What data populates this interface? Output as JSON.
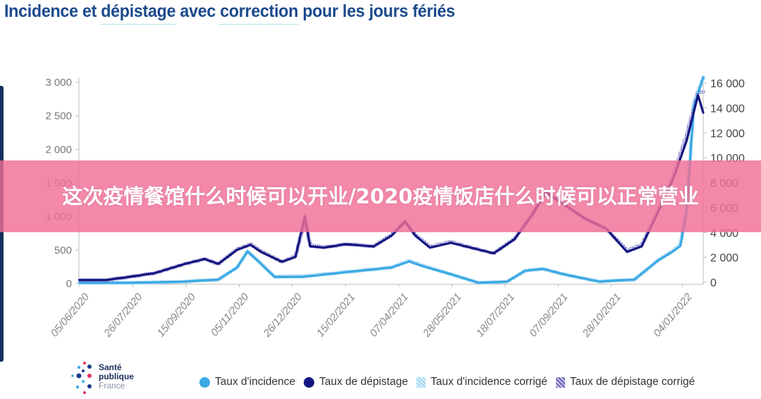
{
  "title": {
    "part1": "Incidence et ",
    "part2": "dépistage",
    "part3": " avec ",
    "part4": "correction",
    "part5": " pour les jours fériés"
  },
  "banner": "这次疫情餐馆什么时候可以开业/2020疫情饭店什么时候可以正常营业",
  "logo": {
    "line1": "Santé",
    "line2": "publique",
    "line3": "France"
  },
  "colors": {
    "incidence": "#3aa9e4",
    "depistage": "#131680",
    "incidence_corrige": "#a6d9f5",
    "depistage_corrige": "#8b86c9",
    "title": "#1b4a8c",
    "banner": "#f06e96"
  },
  "chart_data": {
    "type": "line",
    "title": "Incidence et dépistage avec correction pour les jours fériés",
    "x_type": "date",
    "xlim": [
      "2020-06-05",
      "2022-01-24"
    ],
    "x_ticks": [
      "05/06/2020",
      "26/07/2020",
      "15/09/2020",
      "05/11/2020",
      "26/12/2020",
      "15/02/2021",
      "07/04/2021",
      "28/05/2021",
      "18/07/2021",
      "07/09/2021",
      "28/10/2021",
      "04/01/2022"
    ],
    "y_left": {
      "ylim": [
        0,
        3000
      ],
      "ticks": [
        "0",
        "500",
        "1 000",
        "1 500",
        "2 000",
        "2 500",
        "3 000"
      ],
      "tick_values": [
        0,
        500,
        1000,
        1500,
        2000,
        2500,
        3000
      ]
    },
    "y_right": {
      "ylim": [
        0,
        16000
      ],
      "ticks": [
        "0",
        "2 000",
        "4 000",
        "6 000",
        "8 000",
        "10 000",
        "12 000",
        "14 000",
        "16 000"
      ],
      "tick_values": [
        0,
        2000,
        4000,
        6000,
        8000,
        10000,
        12000,
        14000,
        16000
      ]
    },
    "grid": false,
    "legend": "bottom",
    "series": [
      {
        "name": "Taux d'incidence",
        "axis": "left",
        "style": "line",
        "x": [
          "2020-06-05",
          "2020-07-25",
          "2020-09-14",
          "2020-10-16",
          "2020-11-03",
          "2020-11-13",
          "2020-11-22",
          "2020-12-09",
          "2021-01-05",
          "2021-02-15",
          "2021-03-31",
          "2021-04-17",
          "2021-04-30",
          "2021-05-27",
          "2021-06-23",
          "2021-07-20",
          "2021-08-06",
          "2021-08-23",
          "2021-09-12",
          "2021-10-16",
          "2021-11-19",
          "2021-12-12",
          "2021-12-26",
          "2022-01-02",
          "2022-01-08",
          "2022-01-15",
          "2022-01-24"
        ],
        "y": [
          10,
          10,
          30,
          60,
          240,
          480,
          350,
          100,
          100,
          170,
          240,
          330,
          260,
          140,
          10,
          30,
          190,
          220,
          140,
          30,
          60,
          350,
          480,
          560,
          1080,
          2650,
          3070
        ]
      },
      {
        "name": "Taux de dépistage",
        "axis": "right",
        "style": "line",
        "x": [
          "2020-06-05",
          "2020-06-30",
          "2020-07-25",
          "2020-08-16",
          "2020-09-14",
          "2020-10-03",
          "2020-10-16",
          "2020-11-03",
          "2020-11-16",
          "2020-11-26",
          "2020-12-16",
          "2020-12-29",
          "2021-01-07",
          "2021-01-12",
          "2021-01-25",
          "2021-02-15",
          "2021-03-14",
          "2021-03-31",
          "2021-04-13",
          "2021-04-23",
          "2021-05-07",
          "2021-05-27",
          "2021-06-10",
          "2021-07-07",
          "2021-07-27",
          "2021-08-13",
          "2021-08-26",
          "2021-09-12",
          "2021-10-02",
          "2021-10-23",
          "2021-11-12",
          "2021-11-26",
          "2021-12-12",
          "2021-12-26",
          "2022-01-08",
          "2022-01-19",
          "2022-01-24"
        ],
        "y": [
          170,
          170,
          450,
          730,
          1470,
          1860,
          1470,
          2600,
          3000,
          2430,
          1640,
          2030,
          5300,
          2880,
          2770,
          3050,
          2880,
          3730,
          4860,
          3730,
          2770,
          3160,
          2880,
          2320,
          3450,
          5420,
          7230,
          6270,
          5140,
          4290,
          2430,
          2880,
          5710,
          8250,
          11360,
          15030,
          13620
        ]
      },
      {
        "name": "Taux d'incidence corrigé",
        "axis": "left",
        "style": "hatched",
        "x": [
          "2020-06-05",
          "2020-07-25",
          "2020-09-14",
          "2020-10-16",
          "2020-11-03",
          "2020-11-13",
          "2020-11-22",
          "2020-12-09",
          "2021-01-05",
          "2021-02-15",
          "2021-03-31",
          "2021-04-17",
          "2021-04-30",
          "2021-05-27",
          "2021-06-23",
          "2021-07-20",
          "2021-08-06",
          "2021-08-23",
          "2021-09-12",
          "2021-10-16",
          "2021-11-19",
          "2021-12-12",
          "2021-12-26",
          "2022-01-02",
          "2022-01-08",
          "2022-01-15",
          "2022-01-24"
        ],
        "y": [
          10,
          10,
          30,
          60,
          240,
          480,
          360,
          100,
          110,
          170,
          240,
          340,
          270,
          140,
          10,
          30,
          190,
          220,
          140,
          30,
          60,
          350,
          490,
          580,
          1120,
          2700,
          3070
        ]
      },
      {
        "name": "Taux de dépistage corrigé",
        "axis": "right",
        "style": "hatched",
        "x": [
          "2020-06-05",
          "2020-06-30",
          "2020-07-25",
          "2020-08-16",
          "2020-09-14",
          "2020-10-03",
          "2020-10-16",
          "2020-11-03",
          "2020-11-16",
          "2020-11-26",
          "2020-12-16",
          "2020-12-29",
          "2021-01-07",
          "2021-01-12",
          "2021-01-25",
          "2021-02-15",
          "2021-03-14",
          "2021-03-31",
          "2021-04-13",
          "2021-04-23",
          "2021-05-07",
          "2021-05-27",
          "2021-06-10",
          "2021-07-07",
          "2021-07-27",
          "2021-08-13",
          "2021-08-26",
          "2021-09-12",
          "2021-10-02",
          "2021-10-23",
          "2021-11-12",
          "2021-11-26",
          "2021-12-12",
          "2021-12-26",
          "2022-01-08",
          "2022-01-19",
          "2022-01-24"
        ],
        "y": [
          170,
          170,
          450,
          730,
          1470,
          1860,
          1470,
          2650,
          3050,
          2500,
          1640,
          2100,
          5000,
          3000,
          2800,
          3050,
          2900,
          3800,
          4900,
          3800,
          2850,
          3250,
          2900,
          2320,
          3500,
          5420,
          7230,
          6270,
          5140,
          4290,
          2550,
          3000,
          5800,
          8500,
          11800,
          15300,
          15300
        ]
      }
    ]
  },
  "legend": [
    {
      "label": "Taux d'incidence"
    },
    {
      "label": "Taux de dépistage"
    },
    {
      "label": "Taux d'incidence corrigé"
    },
    {
      "label": "Taux de dépistage corrigé"
    }
  ]
}
